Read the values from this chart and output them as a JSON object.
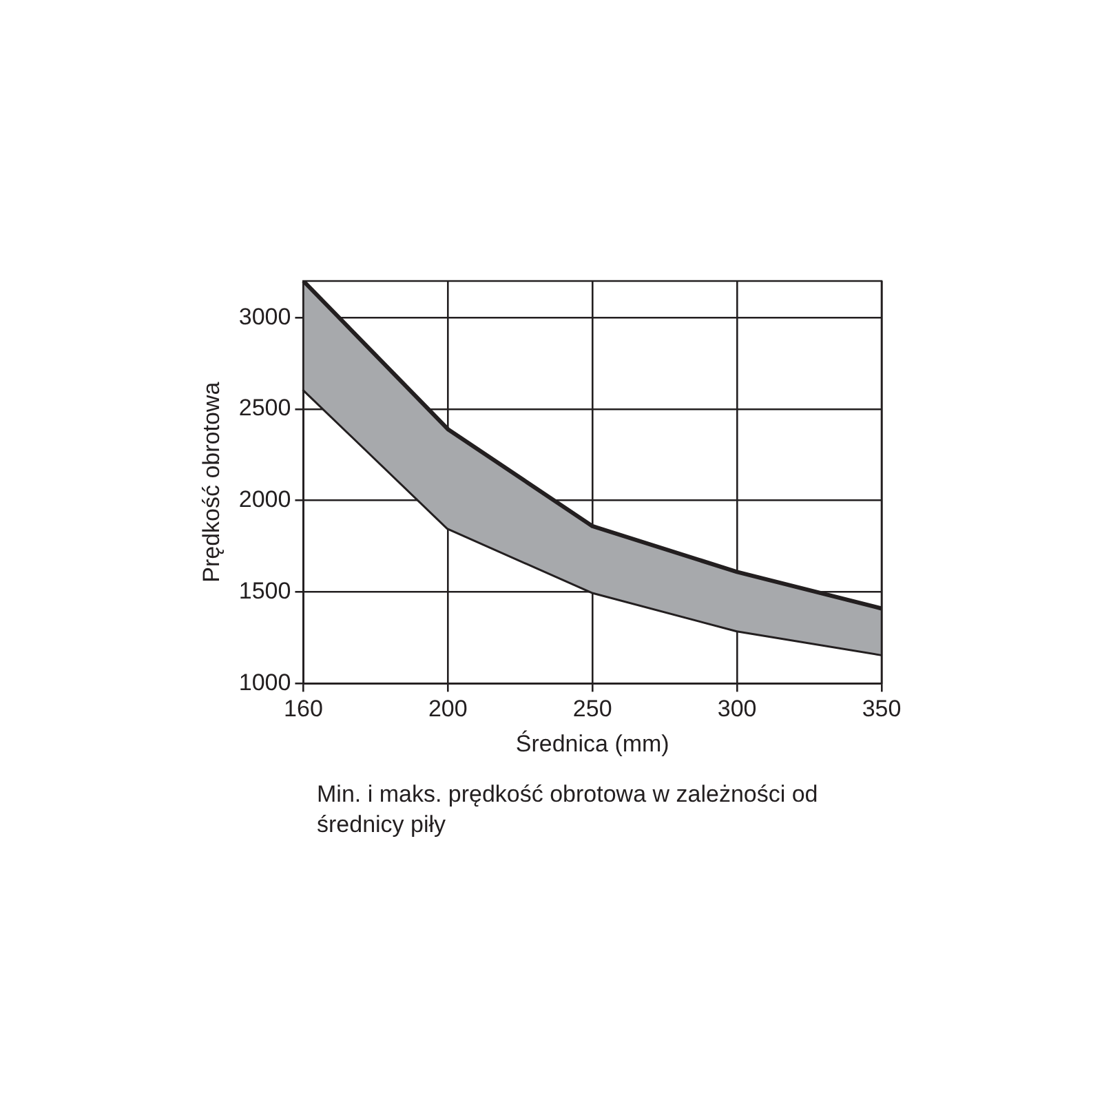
{
  "chart_data": {
    "type": "line",
    "xlabel": "Średnica (mm)",
    "ylabel": "Prędkość obrotowa",
    "categories": [
      "160",
      "200",
      "250",
      "300",
      "350"
    ],
    "series": [
      {
        "type": "area",
        "color": "#a7a9ac",
        "values": [
          3200,
          2390,
          1860,
          1610,
          1410
        ]
      },
      {
        "type": "line",
        "color": "#231f20",
        "values": [
          2610,
          1850,
          1500,
          1290,
          1160
        ]
      }
    ],
    "ylim": [
      1000,
      3200
    ],
    "yticks": [
      1000,
      1500,
      2000,
      2500,
      3000
    ],
    "grid": true,
    "marker": "none",
    "line_style": "solid",
    "annotations": [
      "Min. i maks. prędkość obrotowa w zależności od średnicy piły"
    ]
  }
}
